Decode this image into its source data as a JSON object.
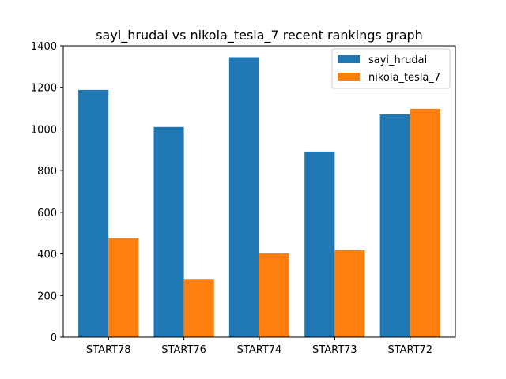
{
  "chart_data": {
    "type": "bar",
    "title": "sayi_hrudai vs nikola_tesla_7 recent rankings graph",
    "xlabel": "",
    "ylabel": "",
    "categories": [
      "START78",
      "START76",
      "START74",
      "START73",
      "START72"
    ],
    "series": [
      {
        "name": "sayi_hrudai",
        "color": "#1f77b4",
        "values": [
          1188,
          1010,
          1345,
          892,
          1070
        ]
      },
      {
        "name": "nikola_tesla_7",
        "color": "#ff7f0e",
        "values": [
          475,
          280,
          402,
          418,
          1097
        ]
      }
    ],
    "ylim": [
      0,
      1400
    ],
    "yticks": [
      0,
      200,
      400,
      600,
      800,
      1000,
      1200,
      1400
    ],
    "grid": false,
    "legend_position": "top-right"
  }
}
